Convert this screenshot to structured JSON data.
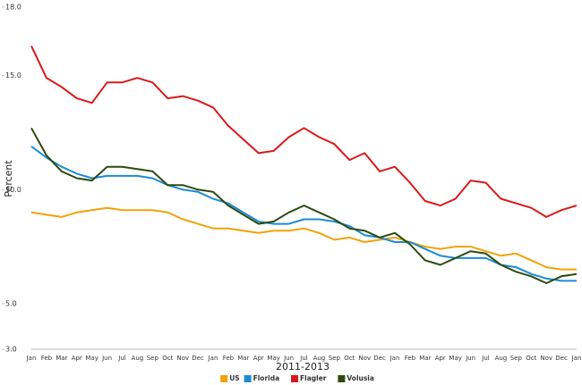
{
  "chart_data": {
    "type": "line",
    "ylabel": "Percent",
    "xlabel": "2011-2013",
    "categories": [
      "Jan",
      "Feb",
      "Mar",
      "Apr",
      "May",
      "Jun",
      "Jul",
      "Aug",
      "Sep",
      "Oct",
      "Nov",
      "Dec",
      "Jan",
      "Feb",
      "Mar",
      "Apr",
      "May",
      "Jun",
      "Jul",
      "Aug",
      "Sep",
      "Oct",
      "Nov",
      "Dec",
      "Jan",
      "Feb",
      "Mar",
      "Apr",
      "May",
      "Jun",
      "Jul",
      "Aug",
      "Sep",
      "Oct",
      "Nov",
      "Dec",
      "Jan"
    ],
    "series": [
      {
        "name": "US",
        "color": "#f0a30a",
        "values": [
          9.0,
          8.9,
          8.8,
          9.0,
          9.1,
          9.2,
          9.1,
          9.1,
          9.1,
          9.0,
          8.7,
          8.5,
          8.3,
          8.3,
          8.2,
          8.1,
          8.2,
          8.2,
          8.3,
          8.1,
          7.8,
          7.9,
          7.7,
          7.8,
          7.9,
          7.7,
          7.5,
          7.4,
          7.5,
          7.5,
          7.3,
          7.1,
          7.2,
          6.9,
          6.6,
          6.5,
          6.5
        ]
      },
      {
        "name": "Florida",
        "color": "#1b8bd6",
        "values": [
          11.9,
          11.4,
          11.0,
          10.7,
          10.5,
          10.6,
          10.6,
          10.6,
          10.5,
          10.2,
          10.0,
          9.9,
          9.6,
          9.4,
          9.0,
          8.6,
          8.5,
          8.5,
          8.7,
          8.7,
          8.6,
          8.4,
          8.0,
          7.9,
          7.7,
          7.7,
          7.4,
          7.1,
          7.0,
          7.0,
          7.0,
          6.7,
          6.6,
          6.3,
          6.1,
          6.0,
          6.0
        ]
      },
      {
        "name": "Flagler",
        "color": "#d9191b",
        "values": [
          16.3,
          14.9,
          14.5,
          14.0,
          13.8,
          14.7,
          14.7,
          14.9,
          14.7,
          14.0,
          14.1,
          13.9,
          13.6,
          12.8,
          12.2,
          11.6,
          11.7,
          12.3,
          12.7,
          12.3,
          12.0,
          11.3,
          11.6,
          10.8,
          11.0,
          10.3,
          9.5,
          9.3,
          9.6,
          10.4,
          10.3,
          9.6,
          9.4,
          9.2,
          8.8,
          9.1,
          9.3
        ]
      },
      {
        "name": "Volusia",
        "color": "#2d4a0f",
        "values": [
          12.7,
          11.5,
          10.8,
          10.5,
          10.4,
          11.0,
          11.0,
          10.9,
          10.8,
          10.2,
          10.2,
          10.0,
          9.9,
          9.3,
          8.9,
          8.5,
          8.6,
          9.0,
          9.3,
          9.0,
          8.7,
          8.3,
          8.2,
          7.9,
          8.1,
          7.6,
          6.9,
          6.7,
          7.0,
          7.3,
          7.2,
          6.7,
          6.4,
          6.2,
          5.9,
          6.2,
          6.3
        ]
      }
    ],
    "ylim": [
      3,
      18
    ],
    "yticks": [
      {
        "value": 3,
        "label": "3.0"
      },
      {
        "value": 5,
        "label": "5.0"
      },
      {
        "value": 10,
        "label": "10.0"
      },
      {
        "value": 15,
        "label": "15.0"
      },
      {
        "value": 18,
        "label": "18.0"
      }
    ],
    "grid": false,
    "legend": "bottom"
  }
}
